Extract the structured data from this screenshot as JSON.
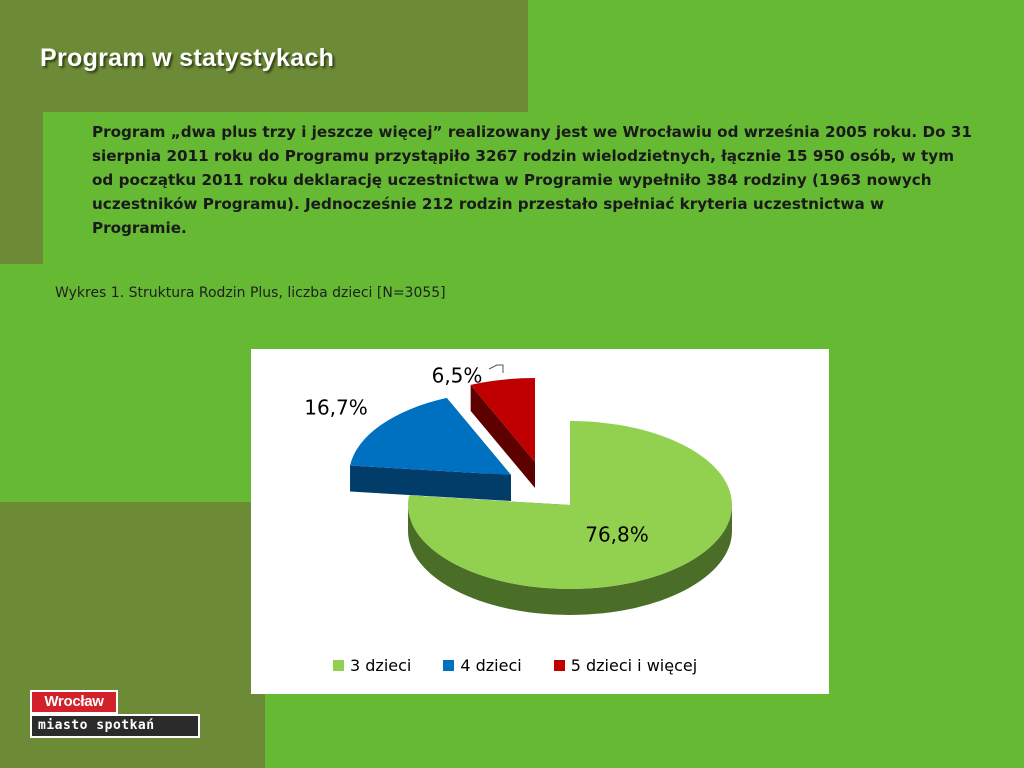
{
  "slide": {
    "title": "Program w statystykach",
    "intro": "Program „dwa plus trzy i jeszcze więcej” realizowany jest we Wrocławiu od września 2005 roku. Do 31 sierpnia  2011 roku do Programu przystąpiło 3267 rodzin wielodzietnych, łącznie 15 950 osób, w tym  od początku  2011 roku deklarację uczestnictwa w Programie wypełniło 384  rodziny (1963 nowych uczestników Programu). Jednocześnie 212 rodzin przestało spełniać kryteria uczestnictwa w Programie.",
    "caption": "Wykres 1. Struktura Rodzin Plus, liczba dzieci [N=3055]"
  },
  "chart_data": {
    "type": "pie",
    "style": "3d-exploded",
    "categories": [
      "3 dzieci",
      "4 dzieci",
      "5 dzieci i więcej"
    ],
    "values": [
      76.8,
      16.7,
      6.5
    ],
    "labels": [
      "76,8%",
      "16,7%",
      "6,5%"
    ],
    "colors": [
      "#92d050",
      "#0070c0",
      "#c00000"
    ],
    "side_colors": [
      "#4a6d28",
      "#023d6a",
      "#5c0000"
    ],
    "legend": "bottom"
  },
  "logo": {
    "top": "Wrocław",
    "bottom": "miasto spotkań"
  }
}
